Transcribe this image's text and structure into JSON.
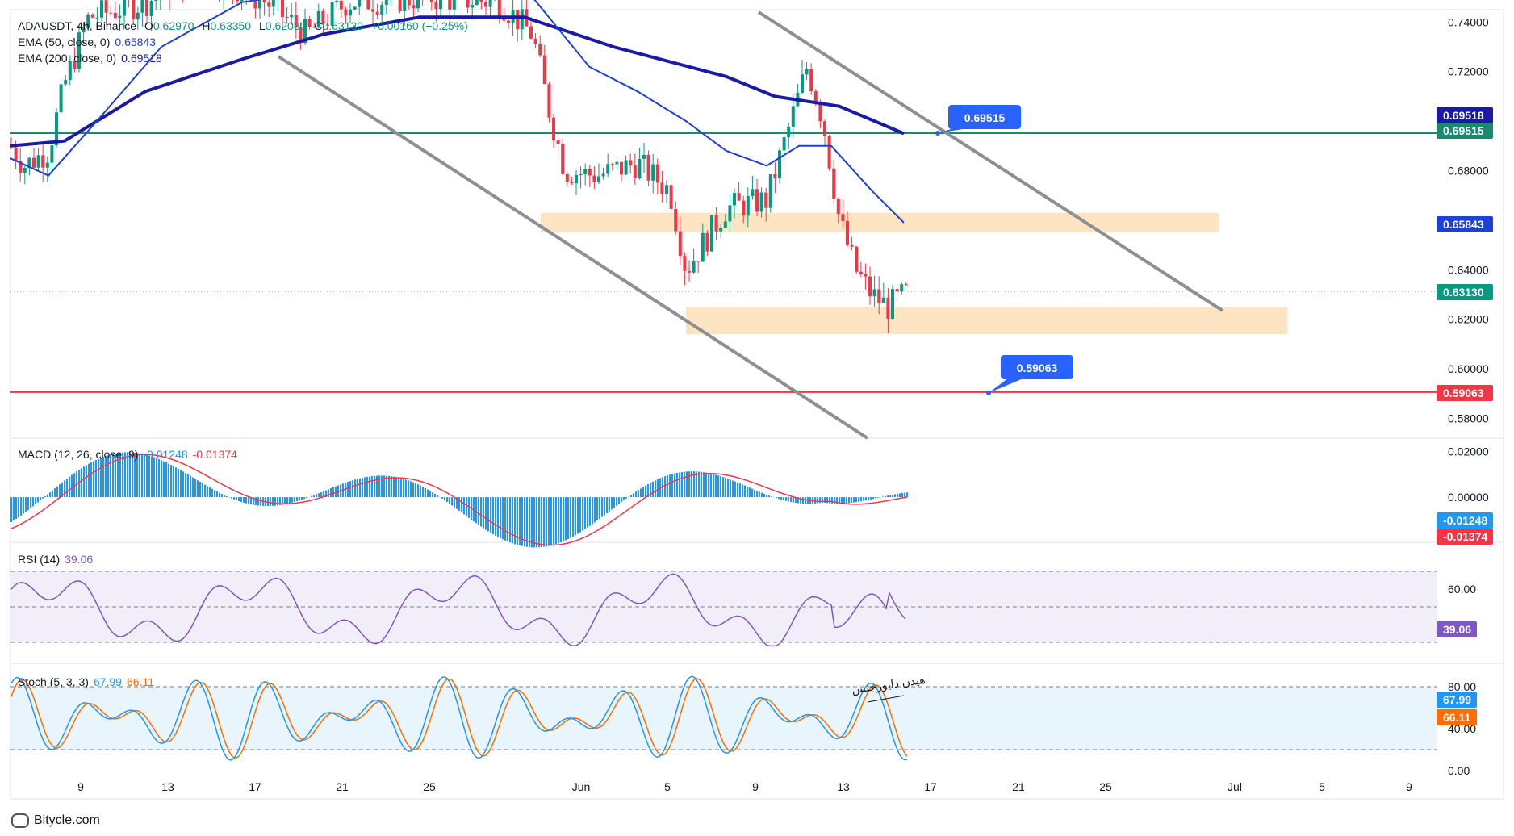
{
  "chart_data": {
    "type": "candlestick",
    "symbol": "ADAUSDT, 4h, Binance",
    "ohlc": {
      "open_label": "O",
      "open": "0.62970",
      "high_label": "H",
      "high": "0.63350",
      "low_label": "L",
      "low": "0.62080",
      "close_label": "C",
      "close": "0.63130",
      "change": "+0.00160 (+0.25%)"
    },
    "ema50": {
      "label": "EMA (50, close, 0)",
      "value": "0.65843",
      "color": "#1e3fd8"
    },
    "ema200": {
      "label": "EMA (200, close, 0)",
      "value": "0.69518",
      "color": "#1a1aa6"
    },
    "price_axis": {
      "ticks": [
        "0.74000",
        "0.72000",
        "0.68000",
        "0.64000",
        "0.62000",
        "0.60000",
        "0.58000"
      ],
      "ylim": [
        0.572,
        0.745
      ]
    },
    "x_axis": {
      "ticks": [
        "9",
        "13",
        "17",
        "21",
        "25",
        "Jun",
        "5",
        "9",
        "13",
        "17",
        "21",
        "25",
        "Jul",
        "5",
        "9"
      ]
    },
    "price_tags": [
      {
        "value": "0.69518",
        "color": "#1a1aa6"
      },
      {
        "value": "0.69515",
        "color": "#1a8a6f"
      },
      {
        "value": "0.65843",
        "color": "#1e3fd8"
      },
      {
        "value": "0.63130",
        "color": "#089981"
      },
      {
        "value": "0.59063",
        "color": "#f23645"
      }
    ],
    "callouts": [
      {
        "value": "0.69515",
        "color": "#2962ff"
      },
      {
        "value": "0.59063",
        "color": "#2962ff"
      }
    ],
    "levels": [
      {
        "value": 0.69515,
        "color": "#1a8a6f"
      },
      {
        "value": 0.59063,
        "color": "#f23645"
      },
      {
        "value": 0.6313,
        "color": "#089981",
        "style": "dotted"
      }
    ],
    "zones": [
      {
        "from": 0.655,
        "to": 0.663,
        "color": "#fde5c4"
      },
      {
        "from": 0.614,
        "to": 0.625,
        "color": "#fde5c4"
      }
    ],
    "macd": {
      "label": "MACD (12, 26, close, 9)",
      "v1": "-0.01248",
      "v2": "-0.01374",
      "ticks": [
        "0.02000",
        "0.00000"
      ],
      "ylim": [
        -0.019,
        0.024
      ]
    },
    "rsi": {
      "label": "RSI (14)",
      "value": "39.06",
      "ticks": [
        "60.00"
      ],
      "upper": 70,
      "mid": 50,
      "lower": 30
    },
    "stoch": {
      "label": "Stoch (5, 3, 3)",
      "k": "67.99",
      "d": "66.11",
      "ticks": [
        "80.00",
        "40.00",
        "0.00"
      ],
      "upper": 80,
      "lower": 20
    },
    "annotation": "هیدن دایورجنس"
  },
  "brand": "Bitycle.com",
  "colors": {
    "up": "#089981",
    "down": "#f23645",
    "ema50": "#1e3fd8",
    "ema200": "#1a1aa6",
    "channel": "#8e8e93",
    "macd_hist": "#2196f3",
    "signal": "#f23645",
    "rsi": "#7e57c2",
    "stoch_k": "#2196f3",
    "stoch_d": "#ff6d00"
  }
}
